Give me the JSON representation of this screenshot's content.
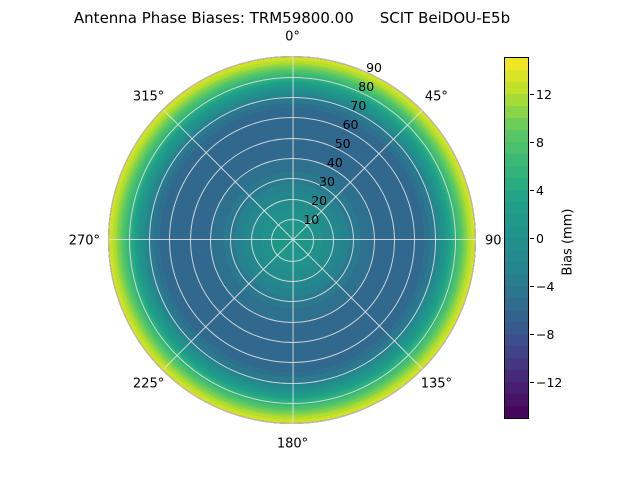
{
  "figure": {
    "title_main": "Antenna Phase Biases: TRM59800.00",
    "title_suffix": "SCIT BeiDOU-E5b"
  },
  "chart_data": {
    "type": "heatmap",
    "subtype": "polar-contourf",
    "title": "Antenna Phase Biases: TRM59800.00     SCIT BeiDOU-E5b",
    "angular_ticks": [
      {
        "angle_deg": 0,
        "label": "0°"
      },
      {
        "angle_deg": 45,
        "label": "45°"
      },
      {
        "angle_deg": 90,
        "label": "90"
      },
      {
        "angle_deg": 135,
        "label": "135°"
      },
      {
        "angle_deg": 180,
        "label": "180°"
      },
      {
        "angle_deg": 225,
        "label": "225°"
      },
      {
        "angle_deg": 270,
        "label": "270°"
      },
      {
        "angle_deg": 315,
        "label": "315°"
      }
    ],
    "radial_ticks": {
      "values": [
        10,
        20,
        30,
        40,
        50,
        60,
        70,
        80,
        90
      ],
      "label_angle_deg": 22.5,
      "range": [
        0,
        90
      ]
    },
    "colormap": "viridis",
    "colorbar": {
      "label": "Bias (mm)",
      "tick_values": [
        12,
        8,
        4,
        0,
        -4,
        -8,
        -12
      ],
      "tick_labels": [
        "12",
        "8",
        "4",
        "0",
        "−4",
        "−8",
        "−12"
      ],
      "vmin": -15,
      "vmax": 15,
      "levels": 30
    },
    "estimated_radial_profile": {
      "note": "bias (mm) vs zenith angle, estimated from colors; pattern radially symmetric",
      "zenith_deg": [
        0,
        10,
        20,
        30,
        40,
        50,
        60,
        65,
        70,
        75,
        80,
        85,
        90
      ],
      "bias_mm": [
        1.5,
        0.5,
        -1.5,
        -4.0,
        -5.5,
        -6.3,
        -6.3,
        -5.5,
        -3.5,
        1.0,
        5.5,
        10.0,
        14.0
      ]
    }
  },
  "colors": {
    "viridis_anchors": [
      "#440154",
      "#482475",
      "#3e4a89",
      "#31688e",
      "#26828e",
      "#21918c",
      "#1fa088",
      "#35b779",
      "#5ec962",
      "#b5de2b",
      "#fde725"
    ],
    "grid": "rgba(228,228,228,0.85)",
    "outline": "#000000",
    "background": "#ffffff",
    "text": "#000000"
  }
}
